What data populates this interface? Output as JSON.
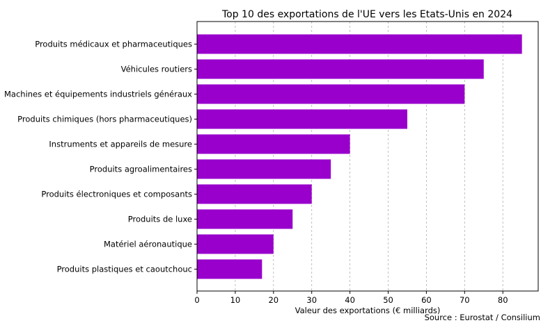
{
  "chart_data": {
    "type": "bar",
    "orientation": "horizontal",
    "title": "Top 10 des exportations de l'UE vers les Etats-Unis en 2024",
    "xlabel": "Valeur des exportations (€ milliards)",
    "ylabel": "",
    "source": "Source : Eurostat / Consilium",
    "categories": [
      "Produits médicaux et pharmaceutiques",
      "Véhicules routiers",
      "Machines et équipements industriels généraux",
      "Produits chimiques (hors pharmaceutiques)",
      "Instruments et appareils de mesure",
      "Produits agroalimentaires",
      "Produits électroniques et composants",
      "Produits de luxe",
      "Matériel aéronautique",
      "Produits plastiques et caoutchouc"
    ],
    "values": [
      85,
      75,
      70,
      55,
      40,
      35,
      30,
      25,
      20,
      17
    ],
    "xlim": [
      0,
      89.25
    ],
    "xticks": [
      0,
      10,
      20,
      30,
      40,
      50,
      60,
      70,
      80
    ],
    "bar_color": "#9900cc",
    "grid": "vertical dashed",
    "legend": "none"
  }
}
